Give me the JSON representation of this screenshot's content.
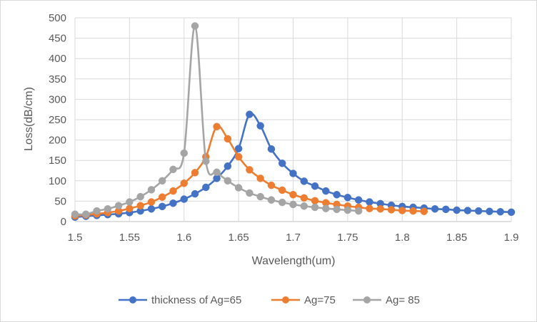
{
  "chart_data": {
    "type": "scatter",
    "title": "",
    "xlabel": "Wavelength(um)",
    "ylabel": "Loss(dB/cm)",
    "xlim": [
      1.5,
      1.9
    ],
    "ylim": [
      0,
      500
    ],
    "xticks": [
      "1.5",
      "1.55",
      "1.6",
      "1.65",
      "1.7",
      "1.75",
      "1.8",
      "1.85",
      "1.9"
    ],
    "yticks": [
      "0",
      "50",
      "100",
      "150",
      "200",
      "250",
      "300",
      "350",
      "400",
      "450",
      "500"
    ],
    "grid": "on",
    "legend_position": "bottom",
    "markers": "circle",
    "lines": "smooth",
    "series": [
      {
        "name": "thickness of Ag=65",
        "color": "#4472c4",
        "x": [
          1.5,
          1.51,
          1.52,
          1.53,
          1.54,
          1.55,
          1.56,
          1.57,
          1.58,
          1.59,
          1.6,
          1.61,
          1.62,
          1.63,
          1.64,
          1.65,
          1.66,
          1.67,
          1.68,
          1.69,
          1.7,
          1.71,
          1.72,
          1.73,
          1.74,
          1.75,
          1.76,
          1.77,
          1.78,
          1.79,
          1.8,
          1.81,
          1.82,
          1.83,
          1.84,
          1.85,
          1.86,
          1.87,
          1.88,
          1.89,
          1.9
        ],
        "y": [
          11,
          13,
          15,
          17,
          19,
          22,
          26,
          31,
          37,
          45,
          55,
          68,
          84,
          106,
          136,
          179,
          263,
          235,
          178,
          143,
          118,
          99,
          87,
          75,
          66,
          59,
          53,
          48,
          44,
          40,
          37,
          35,
          33,
          31,
          30,
          28,
          27,
          26,
          25,
          24,
          23
        ]
      },
      {
        "name": "Ag=75",
        "color": "#ed7d31",
        "x": [
          1.5,
          1.51,
          1.52,
          1.53,
          1.54,
          1.55,
          1.56,
          1.57,
          1.58,
          1.59,
          1.6,
          1.61,
          1.62,
          1.63,
          1.64,
          1.65,
          1.66,
          1.67,
          1.68,
          1.69,
          1.7,
          1.71,
          1.72,
          1.73,
          1.74,
          1.75,
          1.76,
          1.77,
          1.78,
          1.79,
          1.8,
          1.81,
          1.82
        ],
        "y": [
          14,
          16,
          19,
          22,
          26,
          32,
          39,
          48,
          60,
          75,
          94,
          120,
          159,
          233,
          203,
          159,
          127,
          106,
          89,
          77,
          66,
          58,
          51,
          46,
          42,
          38,
          35,
          32,
          31,
          29,
          27,
          26,
          25
        ]
      },
      {
        "name": "Ag= 85",
        "color": "#a5a5a5",
        "x": [
          1.5,
          1.51,
          1.52,
          1.53,
          1.54,
          1.55,
          1.56,
          1.57,
          1.58,
          1.59,
          1.6,
          1.61,
          1.62,
          1.63,
          1.64,
          1.65,
          1.66,
          1.67,
          1.68,
          1.69,
          1.7,
          1.71,
          1.72,
          1.73,
          1.74,
          1.75,
          1.76
        ],
        "y": [
          18,
          18,
          26,
          31,
          39,
          48,
          61,
          78,
          100,
          128,
          168,
          480,
          148,
          121,
          100,
          83,
          70,
          61,
          53,
          47,
          42,
          38,
          35,
          32,
          30,
          28,
          26
        ]
      }
    ]
  }
}
